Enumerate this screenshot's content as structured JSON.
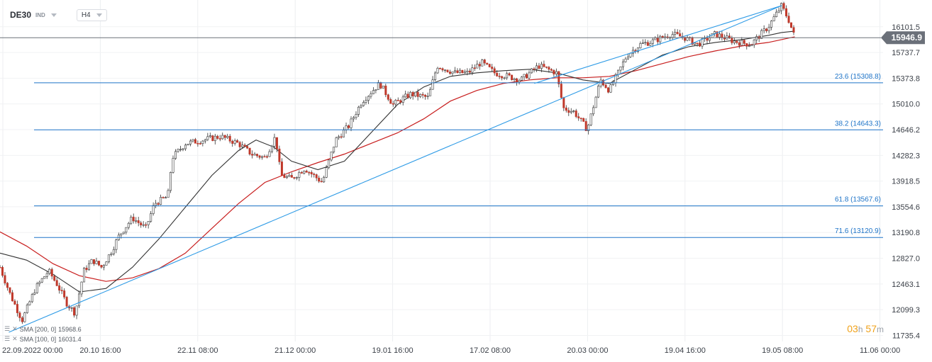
{
  "header": {
    "symbol": "DE30",
    "asset_class": "IND",
    "timeframe": "H4"
  },
  "colors": {
    "up": "#ffffff",
    "down": "#c0392b",
    "wick": "#333333",
    "sma_fast": "#333333",
    "sma_slow": "#c81e1e",
    "fib": "#1e74c8",
    "trend": "#2e9be6",
    "price_label_bg": "#6b7079"
  },
  "legend": [
    {
      "label": "SMA [200, 0]",
      "value": "15968.6"
    },
    {
      "label": "SMA [100, 0]",
      "value": "16031.4"
    }
  ],
  "countdown": {
    "h": "03",
    "h_unit": "h",
    "m": "57",
    "m_unit": "m"
  },
  "chart_data": {
    "type": "candlestick",
    "title": "",
    "xlabel": "",
    "ylabel": "",
    "ylim": [
      11650,
      16480
    ],
    "x_ticks": [
      "22.09.2022 00:00",
      "20.10 16:00",
      "22.11 08:00",
      "21.12 00:00",
      "19.01 16:00",
      "17.02 08:00",
      "20.03 00:00",
      "19.04 16:00",
      "19.05 08:00",
      "11.06 00:00"
    ],
    "y_ticks": [
      "16101.5",
      "15737.7",
      "15373.8",
      "15010.0",
      "14646.2",
      "14282.3",
      "13918.5",
      "13554.6",
      "13190.8",
      "12827.0",
      "12463.1",
      "12099.3",
      "11735.4"
    ],
    "current_price": "15946.9",
    "current_price_value": 15946.9,
    "fib_levels": [
      {
        "label": "23.6 (15308.8)",
        "value": 15308.8
      },
      {
        "label": "38.2 (14643.3)",
        "value": 14643.3
      },
      {
        "label": "61.8 (13567.6)",
        "value": 13567.6
      },
      {
        "label": "71.6 (13120.9)",
        "value": 13120.9
      }
    ],
    "trend_line": [
      [
        0.01,
        11780
      ],
      [
        0.885,
        16400
      ]
    ],
    "price_path": [
      [
        0.0,
        12700
      ],
      [
        0.012,
        12300
      ],
      [
        0.025,
        11950
      ],
      [
        0.04,
        12400
      ],
      [
        0.055,
        12650
      ],
      [
        0.065,
        12450
      ],
      [
        0.075,
        12200
      ],
      [
        0.085,
        12050
      ],
      [
        0.095,
        12650
      ],
      [
        0.105,
        12800
      ],
      [
        0.115,
        12700
      ],
      [
        0.125,
        12900
      ],
      [
        0.135,
        13150
      ],
      [
        0.15,
        13400
      ],
      [
        0.165,
        13250
      ],
      [
        0.175,
        13600
      ],
      [
        0.19,
        13700
      ],
      [
        0.195,
        14250
      ],
      [
        0.21,
        14450
      ],
      [
        0.23,
        14500
      ],
      [
        0.25,
        14550
      ],
      [
        0.27,
        14450
      ],
      [
        0.285,
        14300
      ],
      [
        0.3,
        14250
      ],
      [
        0.312,
        14550
      ],
      [
        0.318,
        14000
      ],
      [
        0.33,
        13950
      ],
      [
        0.345,
        14100
      ],
      [
        0.365,
        13900
      ],
      [
        0.38,
        14500
      ],
      [
        0.395,
        14700
      ],
      [
        0.41,
        15050
      ],
      [
        0.43,
        15300
      ],
      [
        0.445,
        15000
      ],
      [
        0.465,
        15150
      ],
      [
        0.485,
        15100
      ],
      [
        0.495,
        15550
      ],
      [
        0.515,
        15450
      ],
      [
        0.53,
        15450
      ],
      [
        0.545,
        15600
      ],
      [
        0.56,
        15450
      ],
      [
        0.575,
        15400
      ],
      [
        0.59,
        15350
      ],
      [
        0.61,
        15550
      ],
      [
        0.63,
        15450
      ],
      [
        0.638,
        14950
      ],
      [
        0.65,
        14900
      ],
      [
        0.665,
        14650
      ],
      [
        0.68,
        15350
      ],
      [
        0.69,
        15200
      ],
      [
        0.7,
        15450
      ],
      [
        0.71,
        15700
      ],
      [
        0.725,
        15850
      ],
      [
        0.74,
        15900
      ],
      [
        0.76,
        16000
      ],
      [
        0.775,
        15950
      ],
      [
        0.79,
        15850
      ],
      [
        0.81,
        16000
      ],
      [
        0.83,
        15900
      ],
      [
        0.85,
        15850
      ],
      [
        0.87,
        16100
      ],
      [
        0.885,
        16400
      ],
      [
        0.893,
        16200
      ],
      [
        0.9,
        15950
      ]
    ],
    "sma100": [
      [
        0.0,
        12900
      ],
      [
        0.03,
        12800
      ],
      [
        0.06,
        12600
      ],
      [
        0.09,
        12350
      ],
      [
        0.12,
        12400
      ],
      [
        0.15,
        12700
      ],
      [
        0.18,
        13100
      ],
      [
        0.21,
        13550
      ],
      [
        0.24,
        14000
      ],
      [
        0.27,
        14350
      ],
      [
        0.29,
        14500
      ],
      [
        0.31,
        14400
      ],
      [
        0.33,
        14200
      ],
      [
        0.36,
        14080
      ],
      [
        0.39,
        14200
      ],
      [
        0.42,
        14600
      ],
      [
        0.45,
        15000
      ],
      [
        0.48,
        15250
      ],
      [
        0.51,
        15400
      ],
      [
        0.54,
        15450
      ],
      [
        0.57,
        15480
      ],
      [
        0.6,
        15500
      ],
      [
        0.63,
        15450
      ],
      [
        0.66,
        15350
      ],
      [
        0.69,
        15300
      ],
      [
        0.72,
        15500
      ],
      [
        0.75,
        15700
      ],
      [
        0.78,
        15820
      ],
      [
        0.81,
        15880
      ],
      [
        0.84,
        15920
      ],
      [
        0.87,
        15980
      ],
      [
        0.885,
        16020
      ],
      [
        0.9,
        16040
      ]
    ],
    "sma200": [
      [
        0.0,
        13200
      ],
      [
        0.03,
        13000
      ],
      [
        0.06,
        12750
      ],
      [
        0.09,
        12580
      ],
      [
        0.12,
        12500
      ],
      [
        0.15,
        12550
      ],
      [
        0.18,
        12680
      ],
      [
        0.21,
        12900
      ],
      [
        0.24,
        13250
      ],
      [
        0.27,
        13600
      ],
      [
        0.3,
        13900
      ],
      [
        0.33,
        14050
      ],
      [
        0.36,
        14180
      ],
      [
        0.39,
        14300
      ],
      [
        0.42,
        14450
      ],
      [
        0.45,
        14600
      ],
      [
        0.48,
        14800
      ],
      [
        0.51,
        15050
      ],
      [
        0.54,
        15200
      ],
      [
        0.57,
        15300
      ],
      [
        0.6,
        15350
      ],
      [
        0.63,
        15380
      ],
      [
        0.66,
        15380
      ],
      [
        0.69,
        15400
      ],
      [
        0.72,
        15480
      ],
      [
        0.75,
        15580
      ],
      [
        0.78,
        15680
      ],
      [
        0.81,
        15760
      ],
      [
        0.84,
        15830
      ],
      [
        0.87,
        15880
      ],
      [
        0.885,
        15920
      ],
      [
        0.9,
        15960
      ]
    ]
  }
}
